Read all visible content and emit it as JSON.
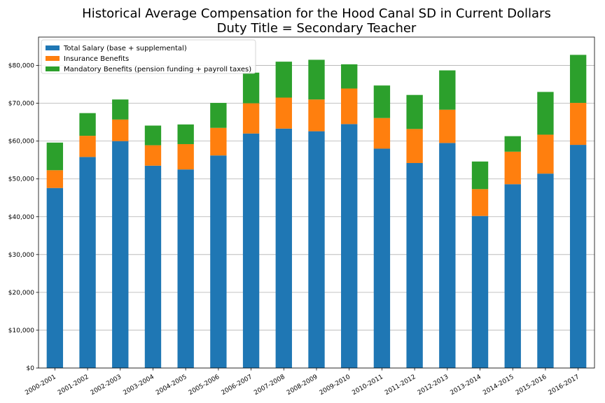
{
  "chart_data": {
    "type": "bar",
    "stacked": true,
    "title": "Historical Average Compensation for the Hood Canal SD in Current Dollars",
    "subtitle": "Duty Title = Secondary Teacher",
    "xlabel": "",
    "ylabel": "",
    "categories": [
      "2000-2001",
      "2001-2002",
      "2002-2003",
      "2003-2004",
      "2004-2005",
      "2005-2006",
      "2006-2007",
      "2007-2008",
      "2008-2009",
      "2009-2010",
      "2010-2011",
      "2011-2012",
      "2012-2013",
      "2013-2014",
      "2014-2015",
      "2015-2016",
      "2016-2017"
    ],
    "series": [
      {
        "name": "Total Salary (base + supplemental)",
        "color": "#1f77b4",
        "values": [
          47600,
          55800,
          60000,
          53500,
          52500,
          56200,
          62000,
          63300,
          62600,
          64500,
          58000,
          54200,
          59500,
          40200,
          48600,
          51400,
          59000
        ]
      },
      {
        "name": "Insurance Benefits",
        "color": "#ff7f0e",
        "values": [
          4700,
          5600,
          5700,
          5400,
          6700,
          7300,
          8000,
          8200,
          8400,
          9400,
          8100,
          9000,
          8800,
          7100,
          8600,
          10300,
          11100
        ]
      },
      {
        "name": "Mandatory Benefits (pension funding + payroll taxes)",
        "color": "#2ca02c",
        "values": [
          7300,
          6000,
          5300,
          5200,
          5200,
          6600,
          8100,
          9500,
          10500,
          6400,
          8600,
          9000,
          10400,
          7300,
          4100,
          11300,
          12700
        ]
      }
    ],
    "ylim": [
      0,
      87500
    ],
    "yticks": [
      0,
      10000,
      20000,
      30000,
      40000,
      50000,
      60000,
      70000,
      80000
    ],
    "ytick_labels": [
      "$0",
      "$10,000",
      "$20,000",
      "$30,000",
      "$40,000",
      "$50,000",
      "$60,000",
      "$70,000",
      "$80,000"
    ],
    "grid": "horizontal",
    "legend": "top-left"
  }
}
